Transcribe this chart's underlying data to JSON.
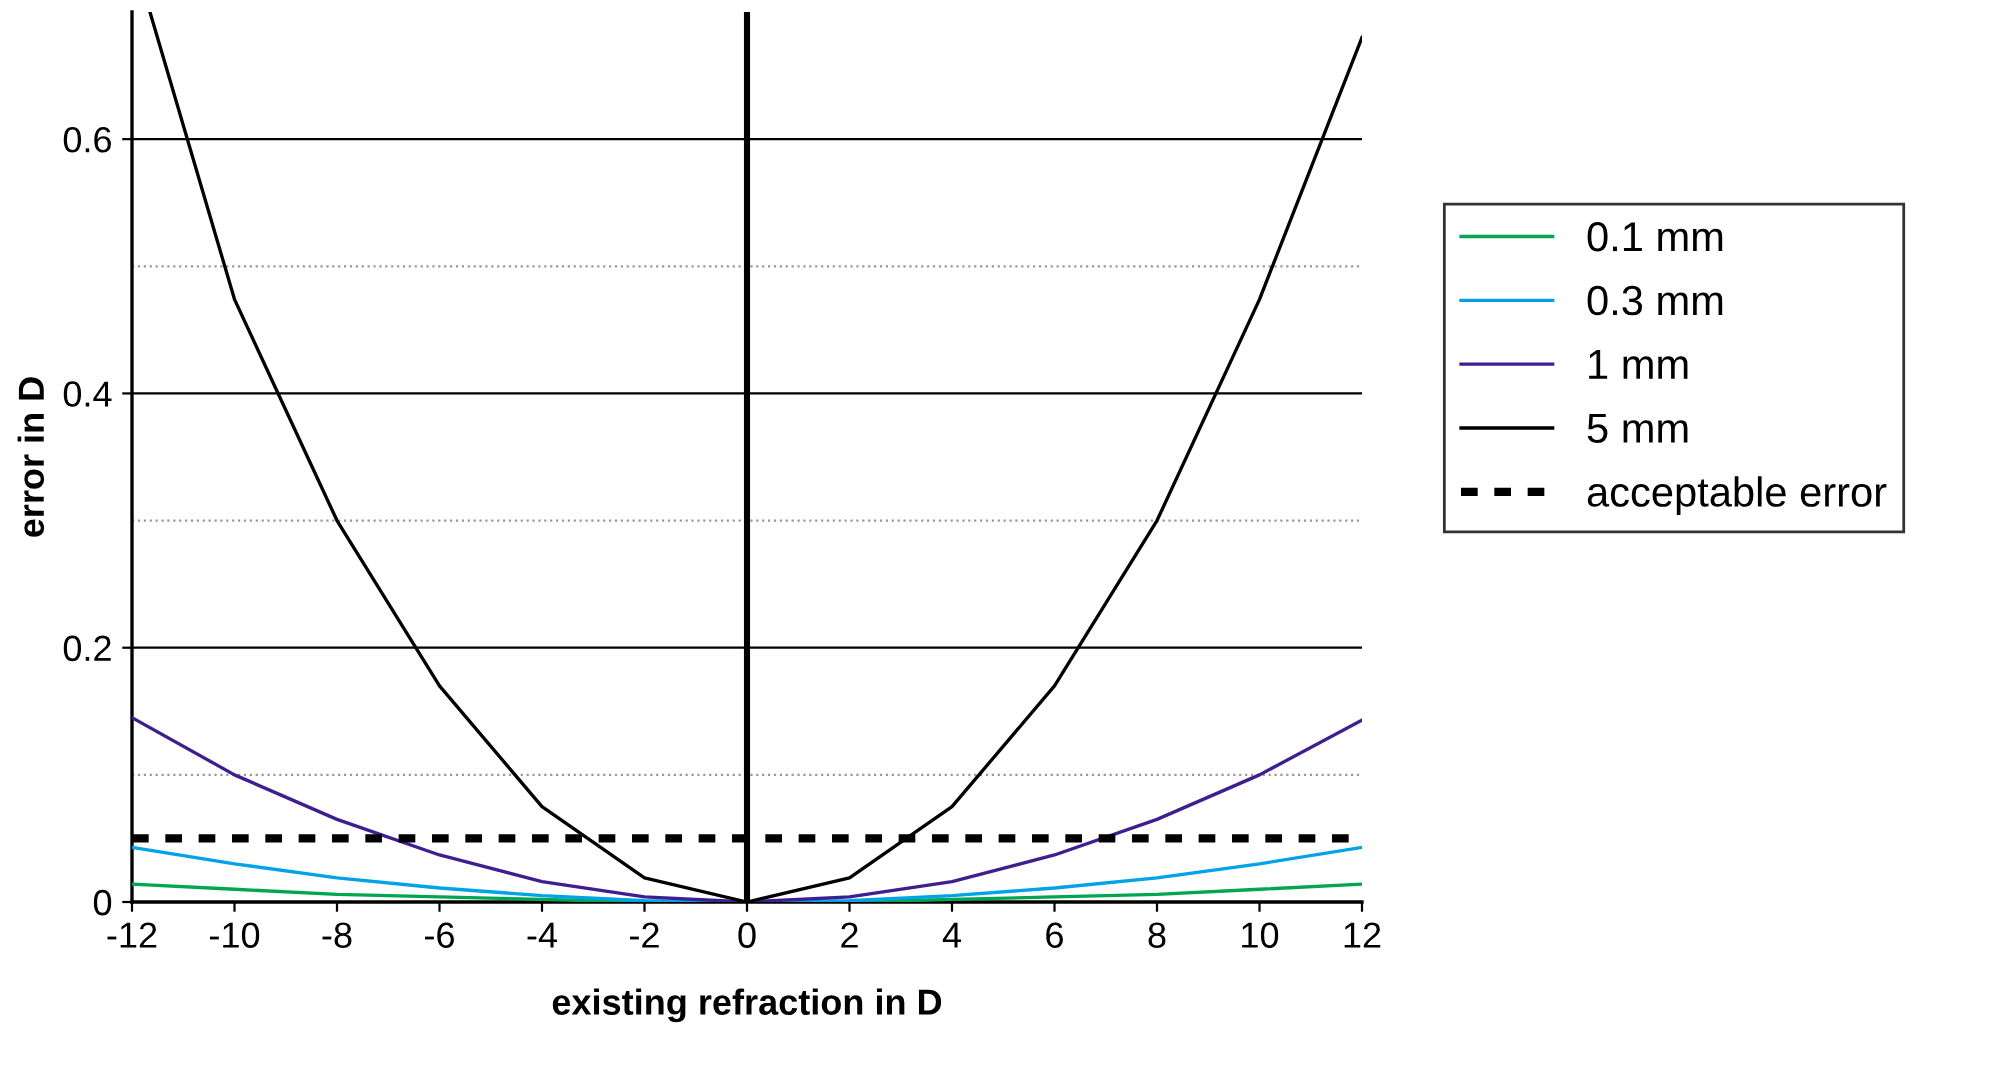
{
  "chart_data": {
    "type": "line",
    "xlabel": "existing refraction in D",
    "ylabel": "error in D",
    "x": [
      -12,
      -10,
      -8,
      -6,
      -4,
      -2,
      0,
      2,
      4,
      6,
      8,
      10,
      12
    ],
    "series": [
      {
        "name": "0.1 mm",
        "color": "#00a651",
        "values": [
          0.014,
          0.01,
          0.006,
          0.004,
          0.002,
          0,
          0,
          0,
          0.002,
          0.004,
          0.006,
          0.01,
          0.014
        ]
      },
      {
        "name": "0.3 mm",
        "color": "#00a2e8",
        "values": [
          0.043,
          0.03,
          0.019,
          0.011,
          0.005,
          0.001,
          0,
          0.001,
          0.005,
          0.011,
          0.019,
          0.03,
          0.043
        ]
      },
      {
        "name": "1 mm",
        "color": "#3f1f8f",
        "values": [
          0.145,
          0.1,
          0.065,
          0.037,
          0.016,
          0.004,
          0,
          0.004,
          0.016,
          0.037,
          0.065,
          0.1,
          0.143
        ]
      },
      {
        "name": "5 mm",
        "color": "#000000",
        "x": [
          -11.65,
          -10,
          -8,
          -6,
          -4,
          -2,
          0,
          2,
          4,
          6,
          8,
          10,
          12
        ],
        "values": [
          0.7,
          0.474,
          0.3,
          0.17,
          0.075,
          0.019,
          0,
          0.019,
          0.075,
          0.17,
          0.3,
          0.474,
          0.68
        ]
      },
      {
        "name": "acceptable error",
        "color": "#000000",
        "line_style": "dashed",
        "x": [
          -12,
          12
        ],
        "values": [
          0.05,
          0.05
        ]
      }
    ],
    "xlim": [
      -12,
      12
    ],
    "xticks": [
      -12,
      -10,
      -8,
      -6,
      -4,
      -2,
      0,
      2,
      4,
      6,
      8,
      10,
      12
    ],
    "ylim": [
      0,
      0.7
    ],
    "yticks": [
      0,
      {
        "value": 0.1,
        "label": null
      },
      0.2,
      {
        "value": 0.3,
        "label": null
      },
      0.4,
      {
        "value": 0.5,
        "label": null
      },
      0.6
    ],
    "ref_lines": [
      {
        "axis": "x",
        "value": 0,
        "color": "#000000"
      }
    ],
    "grid": "y",
    "legend": "right"
  }
}
